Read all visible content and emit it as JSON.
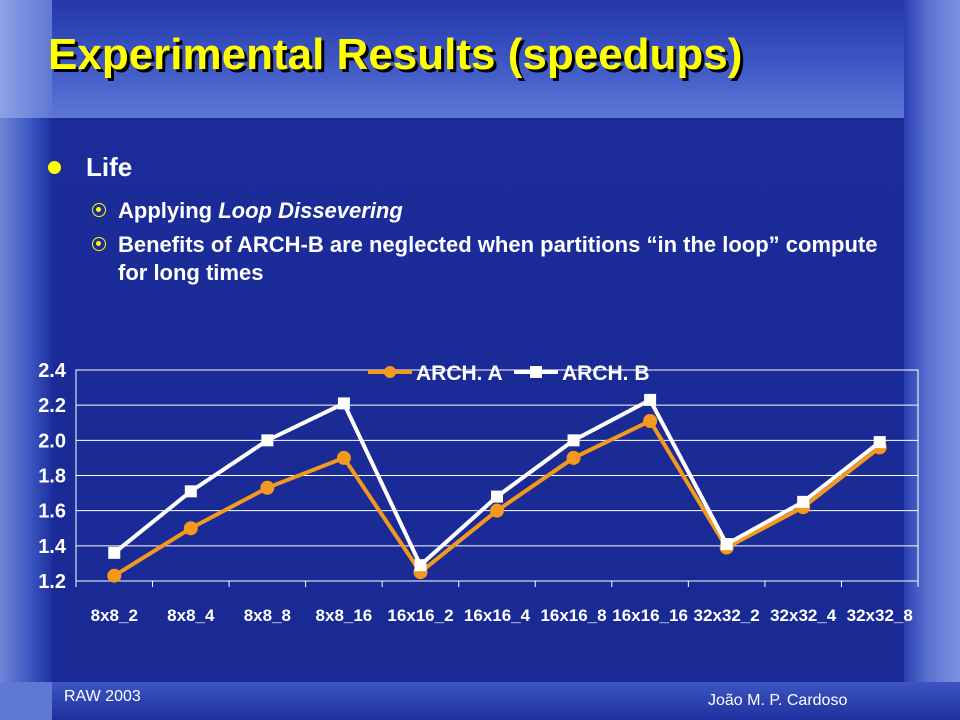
{
  "slide": {
    "title": "Experimental Results (speedups)",
    "bullet": "Life",
    "sub1_prefix": "Applying ",
    "sub1_italic": "Loop Dissevering",
    "sub2": "Benefits of ARCH-B are neglected when partitions “in the loop” compute for long times",
    "footer_left": "RAW 2003",
    "footer_right": "João M. P. Cardoso"
  },
  "colors": {
    "title": "#ffff00",
    "series_a": "#f39a1e",
    "series_b": "#ffffff",
    "grid": "#ffffff",
    "text": "#ffffff"
  },
  "chart_data": {
    "type": "line",
    "categories": [
      "8x8_2",
      "8x8_4",
      "8x8_8",
      "8x8_16",
      "16x16_2",
      "16x16_4",
      "16x16_8",
      "16x16_16",
      "32x32_2",
      "32x32_4",
      "32x32_8"
    ],
    "series": [
      {
        "name": "ARCH. A",
        "values": [
          1.23,
          1.5,
          1.73,
          1.9,
          1.25,
          1.6,
          1.9,
          2.11,
          1.39,
          1.62,
          1.96
        ]
      },
      {
        "name": "ARCH. B",
        "values": [
          1.36,
          1.71,
          2.0,
          2.21,
          1.29,
          1.68,
          2.0,
          2.23,
          1.41,
          1.65,
          1.99
        ]
      }
    ],
    "yticks": [
      "1.2",
      "1.4",
      "1.6",
      "1.8",
      "2.0",
      "2.2",
      "2.4"
    ],
    "ylim": [
      1.2,
      2.4
    ],
    "grid": true,
    "legend_position": "top-center"
  }
}
